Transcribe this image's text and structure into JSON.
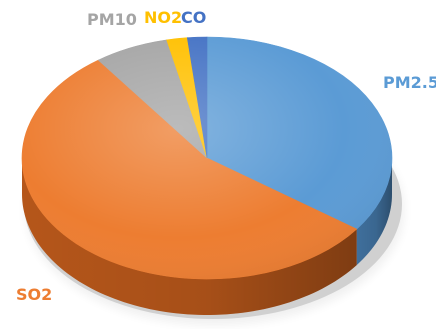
{
  "chart_data": {
    "type": "pie",
    "style": "3d",
    "title": "",
    "slices": [
      {
        "label": "PM2.5",
        "value": 35.0,
        "color": "#5b9bd5",
        "side_color": "#3f6f9c",
        "label_color": "#5b9bd5"
      },
      {
        "label": "SO2",
        "value": 55.0,
        "color": "#ed7d31",
        "side_color": "#b5561a",
        "label_color": "#ed7d31"
      },
      {
        "label": "PM10",
        "value": 6.5,
        "color": "#a5a5a5",
        "side_color": "#7f7f7f",
        "label_color": "#a5a5a5"
      },
      {
        "label": "NO2",
        "value": 1.8,
        "color": "#ffc000",
        "side_color": "#c99700",
        "label_color": "#ffc000"
      },
      {
        "label": "CO",
        "value": 1.7,
        "color": "#4472c4",
        "side_color": "#2f5597",
        "label_color": "#4472c4"
      }
    ],
    "start_angle_deg": 0,
    "direction": "clockwise",
    "legend": "none"
  }
}
